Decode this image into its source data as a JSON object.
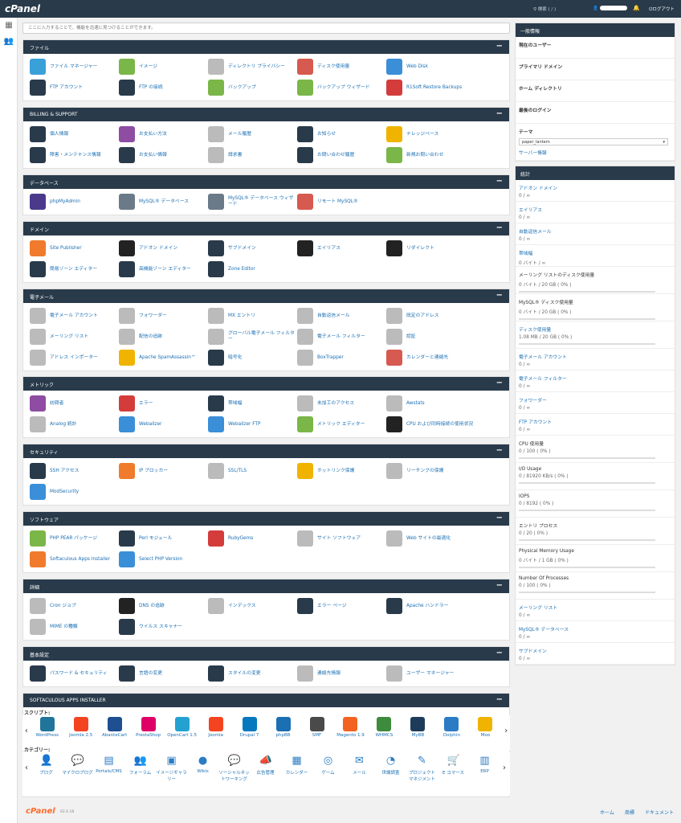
{
  "topbar": {
    "logo": "cPanel",
    "search": "検索 ( / )",
    "logout": "ログアウト"
  },
  "search": {
    "placeholder": "ここに入力することで、機能を迅速に見つけることができます。"
  },
  "sections": [
    {
      "title": "ファイル",
      "items": [
        {
          "label": "ファイル マネージャー",
          "icon": "file-manager-icon",
          "color": "#3aa0d8"
        },
        {
          "label": "イメージ",
          "icon": "image-icon",
          "color": "#7ab648"
        },
        {
          "label": "ディレクトリ プライバシー",
          "icon": "folder-privacy-icon",
          "color": "#bbbbbb"
        },
        {
          "label": "ディスク使用量",
          "icon": "disk-usage-icon",
          "color": "#d65a4f"
        },
        {
          "label": "Web Disk",
          "icon": "web-disk-icon",
          "color": "#3a8fd8"
        },
        {
          "label": "FTP アカウント",
          "icon": "ftp-account-icon",
          "color": "#293a4a"
        },
        {
          "label": "FTP の接続",
          "icon": "ftp-connection-icon",
          "color": "#293a4a"
        },
        {
          "label": "バックアップ",
          "icon": "backup-icon",
          "color": "#7ab648"
        },
        {
          "label": "バックアップ ウィザード",
          "icon": "backup-wizard-icon",
          "color": "#7ab648"
        },
        {
          "label": "R1Soft Restore Backups",
          "icon": "r1soft-icon",
          "color": "#d43c3c"
        }
      ]
    },
    {
      "title": "BILLING & SUPPORT",
      "items": [
        {
          "label": "個人情報",
          "icon": "profile-icon",
          "color": "#293a4a"
        },
        {
          "label": "お支払い方法",
          "icon": "payment-method-icon",
          "color": "#8e4ca2"
        },
        {
          "label": "メール履歴",
          "icon": "email-history-icon",
          "color": "#bbbbbb"
        },
        {
          "label": "お知らせ",
          "icon": "announcement-icon",
          "color": "#293a4a"
        },
        {
          "label": "ナレッジベース",
          "icon": "knowledge-base-icon",
          "color": "#f0b400"
        },
        {
          "label": "障害・メンテナンス情報",
          "icon": "maintenance-icon",
          "color": "#293a4a"
        },
        {
          "label": "お支払い情報",
          "icon": "payment-info-icon",
          "color": "#293a4a"
        },
        {
          "label": "請求書",
          "icon": "invoice-icon",
          "color": "#bbbbbb"
        },
        {
          "label": "お問い合わせ履歴",
          "icon": "inquiry-history-icon",
          "color": "#293a4a"
        },
        {
          "label": "新規お問い合わせ",
          "icon": "new-inquiry-icon",
          "color": "#7ab648"
        }
      ]
    },
    {
      "title": "データベース",
      "items": [
        {
          "label": "phpMyAdmin",
          "icon": "phpmyadmin-icon",
          "color": "#4b3a8c"
        },
        {
          "label": "MySQL® データベース",
          "icon": "mysql-icon",
          "color": "#6b7a88"
        },
        {
          "label": "MySQL® データベース ウィザード",
          "icon": "mysql-wizard-icon",
          "color": "#6b7a88"
        },
        {
          "label": "リモート MySQL®",
          "icon": "remote-mysql-icon",
          "color": "#d65a4f"
        }
      ]
    },
    {
      "title": "ドメイン",
      "items": [
        {
          "label": "Site Publisher",
          "icon": "site-publisher-icon",
          "color": "#f07b2c"
        },
        {
          "label": "アドオン ドメイン",
          "icon": "addon-domain-icon",
          "color": "#222222"
        },
        {
          "label": "サブドメイン",
          "icon": "subdomain-icon",
          "color": "#293a4a"
        },
        {
          "label": "エイリアス",
          "icon": "alias-icon",
          "color": "#222222"
        },
        {
          "label": "リダイレクト",
          "icon": "redirect-icon",
          "color": "#222222"
        },
        {
          "label": "簡易ゾーン エディター",
          "icon": "simple-zone-icon",
          "color": "#293a4a"
        },
        {
          "label": "高機能ゾーン エディター",
          "icon": "advanced-zone-icon",
          "color": "#293a4a"
        },
        {
          "label": "Zone Editor",
          "icon": "zone-editor-icon",
          "color": "#293a4a"
        }
      ]
    },
    {
      "title": "電子メール",
      "items": [
        {
          "label": "電子メール アカウント",
          "icon": "email-account-icon",
          "color": "#bbbbbb"
        },
        {
          "label": "フォワーダー",
          "icon": "forwarder-icon",
          "color": "#bbbbbb"
        },
        {
          "label": "MX エントリ",
          "icon": "mx-entry-icon",
          "color": "#bbbbbb"
        },
        {
          "label": "自動返信メール",
          "icon": "autoresponder-icon",
          "color": "#bbbbbb"
        },
        {
          "label": "既定のアドレス",
          "icon": "default-address-icon",
          "color": "#bbbbbb"
        },
        {
          "label": "メーリング リスト",
          "icon": "mailing-list-icon",
          "color": "#bbbbbb"
        },
        {
          "label": "配信の追跡",
          "icon": "track-delivery-icon",
          "color": "#bbbbbb"
        },
        {
          "label": "グローバル電子メール フィルター",
          "icon": "global-filter-icon",
          "color": "#bbbbbb"
        },
        {
          "label": "電子メール フィルター",
          "icon": "email-filter-icon",
          "color": "#bbbbbb"
        },
        {
          "label": "認証",
          "icon": "authentication-icon",
          "color": "#bbbbbb"
        },
        {
          "label": "アドレス インポーター",
          "icon": "address-importer-icon",
          "color": "#bbbbbb"
        },
        {
          "label": "Apache SpamAssassin™",
          "icon": "spamassassin-icon",
          "color": "#f0b400"
        },
        {
          "label": "暗号化",
          "icon": "encryption-key-icon",
          "color": "#293a4a"
        },
        {
          "label": "BoxTrapper",
          "icon": "boxtrapper-icon",
          "color": "#bbbbbb"
        },
        {
          "label": "カレンダーと連絡先",
          "icon": "calendar-contacts-icon",
          "color": "#d65a4f"
        }
      ]
    },
    {
      "title": "メトリック",
      "items": [
        {
          "label": "訪問者",
          "icon": "visitors-icon",
          "color": "#8e4ca2"
        },
        {
          "label": "エラー",
          "icon": "errors-icon",
          "color": "#d43c3c"
        },
        {
          "label": "帯域幅",
          "icon": "bandwidth-icon",
          "color": "#293a4a"
        },
        {
          "label": "未加工のアクセス",
          "icon": "raw-access-icon",
          "color": "#bbbbbb"
        },
        {
          "label": "Awstats",
          "icon": "awstats-icon",
          "color": "#bbbbbb"
        },
        {
          "label": "Analog 統計",
          "icon": "analog-stats-icon",
          "color": "#bbbbbb"
        },
        {
          "label": "Webalizer",
          "icon": "webalizer-icon",
          "color": "#3a8fd8"
        },
        {
          "label": "Webalizer FTP",
          "icon": "webalizer-ftp-icon",
          "color": "#3a8fd8"
        },
        {
          "label": "メトリック エディター",
          "icon": "metrics-editor-icon",
          "color": "#7ab648"
        },
        {
          "label": "CPU および同時接続の使用状況",
          "icon": "cpu-usage-icon",
          "color": "#222222"
        }
      ]
    },
    {
      "title": "セキュリティ",
      "items": [
        {
          "label": "SSH アクセス",
          "icon": "ssh-icon",
          "color": "#293a4a"
        },
        {
          "label": "IP ブロッカー",
          "icon": "ip-blocker-icon",
          "color": "#f07b2c"
        },
        {
          "label": "SSL/TLS",
          "icon": "ssl-icon",
          "color": "#bbbbbb"
        },
        {
          "label": "ホットリンク保護",
          "icon": "hotlink-icon",
          "color": "#f0b400"
        },
        {
          "label": "リーチングの保護",
          "icon": "leech-icon",
          "color": "#bbbbbb"
        },
        {
          "label": "ModSecurity",
          "icon": "modsecurity-icon",
          "color": "#3a8fd8"
        }
      ]
    },
    {
      "title": "ソフトウェア",
      "items": [
        {
          "label": "PHP PEAR パッケージ",
          "icon": "php-pear-icon",
          "color": "#7ab648"
        },
        {
          "label": "Perl モジュール",
          "icon": "perl-icon",
          "color": "#293a4a"
        },
        {
          "label": "RubyGems",
          "icon": "rubygems-icon",
          "color": "#d43c3c"
        },
        {
          "label": "サイト ソフトウェア",
          "icon": "site-software-icon",
          "color": "#bbbbbb"
        },
        {
          "label": "Web サイトの最適化",
          "icon": "optimize-icon",
          "color": "#bbbbbb"
        },
        {
          "label": "Softaculous Apps Installer",
          "icon": "softaculous-icon",
          "color": "#f07b2c"
        },
        {
          "label": "Select PHP Version",
          "icon": "select-php-icon",
          "color": "#3a8fd8"
        }
      ]
    },
    {
      "title": "詳細",
      "items": [
        {
          "label": "Cron ジョブ",
          "icon": "cron-icon",
          "color": "#bbbbbb"
        },
        {
          "label": "DNS の追跡",
          "icon": "dns-track-icon",
          "color": "#222222"
        },
        {
          "label": "インデックス",
          "icon": "indexes-icon",
          "color": "#bbbbbb"
        },
        {
          "label": "エラー ページ",
          "icon": "error-pages-icon",
          "color": "#293a4a"
        },
        {
          "label": "Apache ハンドラー",
          "icon": "apache-handlers-icon",
          "color": "#293a4a"
        },
        {
          "label": "MIME の種類",
          "icon": "mime-icon",
          "color": "#bbbbbb"
        },
        {
          "label": "ウイルス スキャナー",
          "icon": "virus-scanner-icon",
          "color": "#293a4a"
        }
      ]
    },
    {
      "title": "基本設定",
      "items": [
        {
          "label": "パスワード & セキュリティ",
          "icon": "password-icon",
          "color": "#293a4a"
        },
        {
          "label": "言語の変更",
          "icon": "language-icon",
          "color": "#293a4a"
        },
        {
          "label": "スタイルの変更",
          "icon": "style-icon",
          "color": "#293a4a"
        },
        {
          "label": "連絡先情報",
          "icon": "contact-info-icon",
          "color": "#bbbbbb"
        },
        {
          "label": "ユーザー マネージャー",
          "icon": "user-manager-icon",
          "color": "#bbbbbb"
        }
      ]
    }
  ],
  "softaculous": {
    "title": "SOFTACULOUS APPS INSTALLER",
    "scripts_label": "スクリプト:",
    "categories_label": "カテゴリー:",
    "scripts": [
      {
        "label": "WordPress",
        "color": "#21759b"
      },
      {
        "label": "Joomla 2.5",
        "color": "#f44321"
      },
      {
        "label": "AbanteCart",
        "color": "#1d4f91"
      },
      {
        "label": "PrestaShop",
        "color": "#df0067"
      },
      {
        "label": "OpenCart 1.5",
        "color": "#23a1d1"
      },
      {
        "label": "Joomla",
        "color": "#f44321"
      },
      {
        "label": "Drupal 7",
        "color": "#0678be"
      },
      {
        "label": "phpBB",
        "color": "#1b6fb3"
      },
      {
        "label": "SMF",
        "color": "#4a4a4a"
      },
      {
        "label": "Magento 1.9",
        "color": "#f26322"
      },
      {
        "label": "WHMCS",
        "color": "#3d8b3d"
      },
      {
        "label": "MyBB",
        "color": "#1e3c5a"
      },
      {
        "label": "Dolphin",
        "color": "#2b7cc4"
      },
      {
        "label": "Moo",
        "color": "#f0b400"
      }
    ],
    "categories": [
      {
        "label": "ブログ",
        "glyph": "👤"
      },
      {
        "label": "マイクロブログ",
        "glyph": "💬"
      },
      {
        "label": "Portals/CMS",
        "glyph": "▤"
      },
      {
        "label": "フォーラム",
        "glyph": "👥"
      },
      {
        "label": "イメージギャラリー",
        "glyph": "▣"
      },
      {
        "label": "Wikis",
        "glyph": "●"
      },
      {
        "label": "ソーシャルネットワーキング",
        "glyph": "💬"
      },
      {
        "label": "広告管理",
        "glyph": "📣"
      },
      {
        "label": "カレンダー",
        "glyph": "▦"
      },
      {
        "label": "ゲーム",
        "glyph": "◎"
      },
      {
        "label": "メール",
        "glyph": "✉"
      },
      {
        "label": "世論調査",
        "glyph": "◔"
      },
      {
        "label": "プロジェクト マネジメント",
        "glyph": "✎"
      },
      {
        "label": "E コマース",
        "glyph": "🛒"
      },
      {
        "label": "ERP",
        "glyph": "▥"
      }
    ]
  },
  "sidebar": {
    "general_title": "一般情報",
    "general": [
      {
        "k": "現在のユーザー",
        "v": ""
      },
      {
        "k": "プライマリ ドメイン",
        "v": ""
      },
      {
        "k": "ホーム ディレクトリ",
        "v": ""
      },
      {
        "k": "最後のログイン",
        "v": ""
      }
    ],
    "theme_label": "テーマ",
    "theme_value": "paper_lantern",
    "server_info": "サーバー情報",
    "stats_title": "統計",
    "stats": [
      {
        "k": "アドオン ドメイン",
        "v": "0 / ∞",
        "link": true,
        "bar": false
      },
      {
        "k": "エイリアス",
        "v": "0 / ∞",
        "link": true,
        "bar": false
      },
      {
        "k": "自動返信メール",
        "v": "0 / ∞",
        "link": true,
        "bar": false
      },
      {
        "k": "帯域幅",
        "v": "0 バイト / ∞",
        "link": true,
        "bar": false
      },
      {
        "k": "メーリング リストのディスク使用量",
        "v": "0 バイト / 20 GB ( 0% )",
        "link": false,
        "bar": true
      },
      {
        "k": "MySQL® ディスク使用量",
        "v": "0 バイト / 20 GB ( 0% )",
        "link": false,
        "bar": true
      },
      {
        "k": "ディスク使用量",
        "v": "1.08 MB / 20 GB ( 0% )",
        "link": true,
        "bar": true
      },
      {
        "k": "電子メール アカウント",
        "v": "0 / ∞",
        "link": true,
        "bar": false
      },
      {
        "k": "電子メール フィルター",
        "v": "0 / ∞",
        "link": true,
        "bar": false
      },
      {
        "k": "フォワーダー",
        "v": "0 / ∞",
        "link": true,
        "bar": false
      },
      {
        "k": "FTP アカウント",
        "v": "0 / ∞",
        "link": true,
        "bar": false
      },
      {
        "k": "CPU 使用量",
        "v": "0 / 100 ( 0% )",
        "link": false,
        "bar": true
      },
      {
        "k": "I/O Usage",
        "v": "0 / 81920 KB/s ( 0% )",
        "link": false,
        "bar": true
      },
      {
        "k": "IOPS",
        "v": "0 / 8192 ( 0% )",
        "link": false,
        "bar": true
      },
      {
        "k": "エントリ プロセス",
        "v": "0 / 20 ( 0% )",
        "link": false,
        "bar": true
      },
      {
        "k": "Physical Memory Usage",
        "v": "0 バイト / 1 GB ( 0% )",
        "link": false,
        "bar": true
      },
      {
        "k": "Number Of Processes",
        "v": "0 / 100 ( 0% )",
        "link": false,
        "bar": true
      },
      {
        "k": "メーリング リスト",
        "v": "0 / ∞",
        "link": true,
        "bar": false
      },
      {
        "k": "MySQL® データベース",
        "v": "0 / ∞",
        "link": true,
        "bar": false
      },
      {
        "k": "サブドメイン",
        "v": "0 / ∞",
        "link": true,
        "bar": false
      }
    ]
  },
  "footer": {
    "logo": "cPanel",
    "version": "62.0.18",
    "home": "ホーム",
    "trademarks": "商標",
    "docs": "ドキュメント"
  }
}
